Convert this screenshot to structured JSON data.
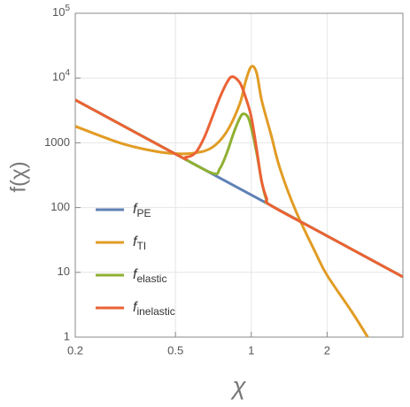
{
  "chart_data": {
    "type": "line",
    "x_label": "χ",
    "y_label": "f(χ)",
    "x_scale": "log",
    "y_scale": "log",
    "grid": true,
    "legend_position": "center left",
    "xlim": [
      0.2,
      4
    ],
    "ylim": [
      1,
      100000
    ],
    "xticks": [
      0.2,
      0.5,
      1,
      2
    ],
    "yticks": [
      1,
      10,
      100,
      1000,
      {
        "value": 10000,
        "label": "10",
        "superscript": "4"
      },
      {
        "value": 100000,
        "label": "10",
        "superscript": "5"
      }
    ],
    "series": [
      {
        "name": "f",
        "name_subscript": "PE",
        "color": "#5e81b5",
        "x": [
          0.2,
          0.5,
          0.7,
          1,
          1.2,
          2,
          4
        ],
        "values": [
          4600,
          672,
          331,
          157,
          107,
          36.5,
          8.5
        ]
      },
      {
        "name": "f",
        "name_subscript": "TI",
        "color": "#e19c24",
        "x": [
          0.2,
          0.3,
          0.4,
          0.5,
          0.6,
          0.7,
          0.8,
          0.9,
          0.95,
          1.0,
          1.05,
          1.1,
          1.2,
          1.3,
          1.5,
          1.8,
          2,
          2.5,
          2.9
        ],
        "values": [
          1800,
          1000,
          760,
          680,
          700,
          850,
          1500,
          4000,
          9000,
          15000,
          12000,
          4500,
          1300,
          400,
          90,
          20,
          9,
          2.5,
          1
        ]
      },
      {
        "name": "f",
        "name_subscript": "elastic",
        "color": "#8fb032",
        "x": [
          0.2,
          0.5,
          0.7,
          0.75,
          0.8,
          0.85,
          0.9,
          0.93,
          0.97,
          1.0,
          1.05,
          1.1,
          1.15,
          1.2,
          2,
          4
        ],
        "values": [
          4600,
          672,
          340,
          400,
          700,
          1400,
          2400,
          2800,
          2500,
          1700,
          700,
          250,
          130,
          107,
          36.5,
          8.5
        ]
      },
      {
        "name": "f",
        "name_subscript": "inelastic",
        "color": "#eb6235",
        "x": [
          0.2,
          0.5,
          0.55,
          0.6,
          0.65,
          0.7,
          0.75,
          0.8,
          0.84,
          0.9,
          0.95,
          1.0,
          1.05,
          1.1,
          1.15,
          1.2,
          2,
          4
        ],
        "values": [
          4600,
          672,
          600,
          700,
          1200,
          2500,
          5000,
          8500,
          10500,
          8500,
          5000,
          2500,
          800,
          250,
          140,
          107,
          36.5,
          8.5
        ]
      }
    ]
  }
}
